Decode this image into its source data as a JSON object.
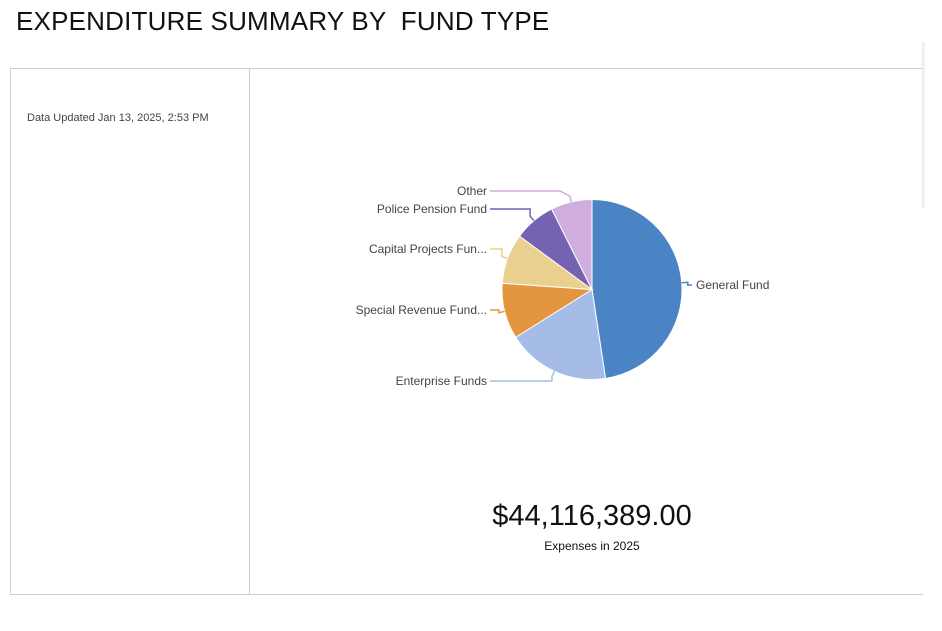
{
  "page": {
    "title": "EXPENDITURE SUMMARY BY  FUND TYPE"
  },
  "sidebar": {
    "updated": "Data Updated Jan 13, 2025, 2:53 PM"
  },
  "summary": {
    "total": "$44,116,389.00",
    "caption": "Expenses in 2025"
  },
  "chart_data": {
    "type": "pie",
    "title": "",
    "categories": [
      "General Fund",
      "Enterprise Funds",
      "Special Revenue Fund...",
      "Capital Projects Fun...",
      "Police Pension Fund",
      "Other"
    ],
    "values": [
      47.6,
      18.5,
      10.0,
      9.0,
      7.5,
      7.4
    ],
    "value_unit": "percent of total (estimated)",
    "colors": [
      "#4a84c4",
      "#a5bde6",
      "#e3963e",
      "#ead08f",
      "#7563b1",
      "#cfaddd"
    ],
    "start": "top, clockwise",
    "labels_with_leader_lines": true
  }
}
